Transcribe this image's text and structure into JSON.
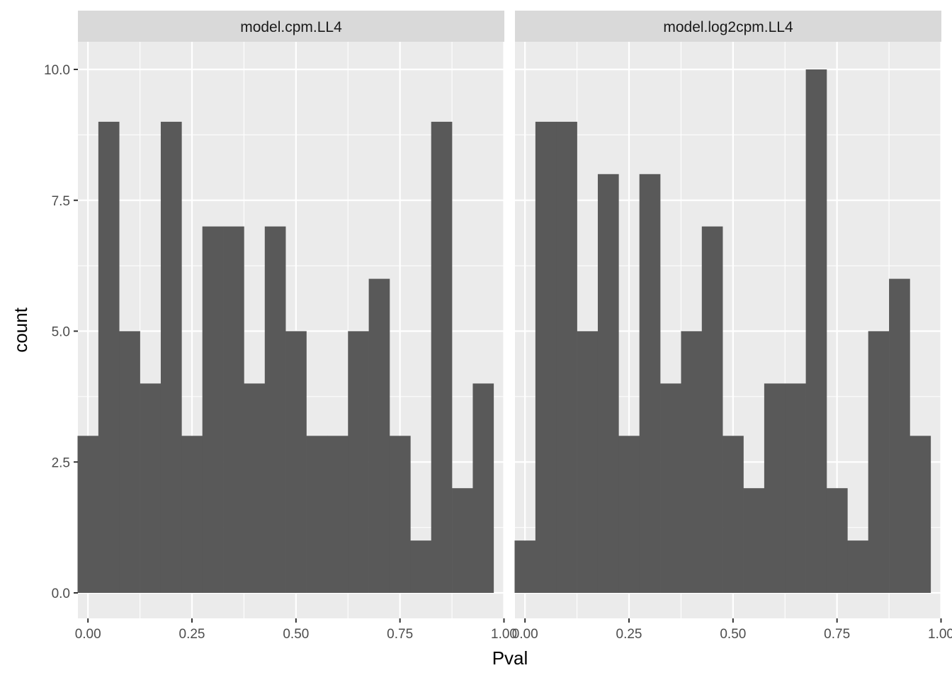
{
  "chart_data": {
    "type": "bar",
    "histogram": true,
    "xlabel": "Pval",
    "ylabel": "count",
    "xlim": [
      -0.025,
      1.0
    ],
    "ylim": [
      0,
      10
    ],
    "x_ticks": [
      0,
      0.25,
      0.5,
      0.75,
      1.0
    ],
    "x_tick_labels": [
      "0.00",
      "0.25",
      "0.50",
      "0.75",
      "1.00"
    ],
    "y_ticks": [
      0,
      2.5,
      5,
      7.5,
      10
    ],
    "y_tick_labels": [
      "0.0",
      "2.5",
      "5.0",
      "7.5",
      "10.0"
    ],
    "bin_width": 0.05,
    "bin_centers": [
      0.0,
      0.05,
      0.1,
      0.15,
      0.2,
      0.25,
      0.3,
      0.35,
      0.4,
      0.45,
      0.5,
      0.55,
      0.6,
      0.65,
      0.7,
      0.75,
      0.8,
      0.85,
      0.9,
      0.95
    ],
    "grid": true,
    "bar_color": "#595959",
    "panel_color": "#EBEBEB",
    "strip_color": "#D9D9D9",
    "series": [
      {
        "name": "model.cpm.LL4",
        "values": [
          3,
          9,
          5,
          4,
          9,
          3,
          7,
          7,
          4,
          7,
          5,
          3,
          3,
          5,
          6,
          3,
          1,
          9,
          2,
          4
        ]
      },
      {
        "name": "model.log2cpm.LL4",
        "values": [
          1,
          9,
          9,
          5,
          8,
          3,
          8,
          4,
          5,
          7,
          3,
          2,
          4,
          4,
          10,
          2,
          1,
          5,
          6,
          3
        ]
      }
    ]
  }
}
